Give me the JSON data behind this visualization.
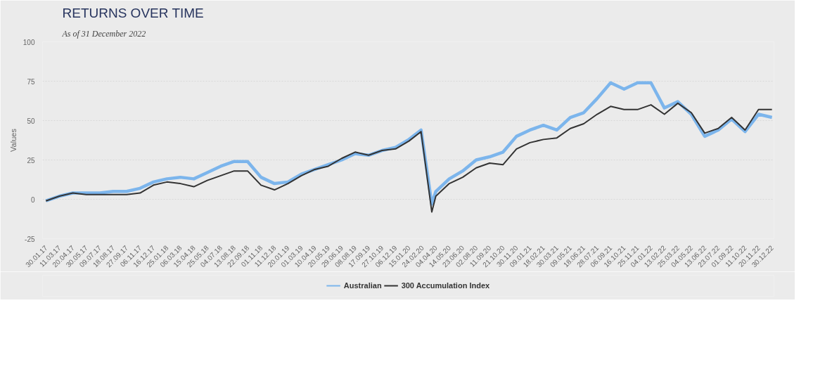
{
  "chart_data": {
    "type": "line",
    "title": "RETURNS OVER TIME",
    "subtitle": "As of 31 December 2022",
    "ylabel": "Values",
    "x": [
      "2017-01-30",
      "2017-03-11",
      "2017-04-20",
      "2017-05-30",
      "2017-07-09",
      "2017-08-18",
      "2017-09-27",
      "2017-11-06",
      "2017-12-16",
      "2018-01-25",
      "2018-03-06",
      "2018-04-15",
      "2018-05-25",
      "2018-07-04",
      "2018-08-13",
      "2018-09-22",
      "2018-11-01",
      "2018-12-11",
      "2019-01-20",
      "2019-03-01",
      "2019-04-10",
      "2019-05-20",
      "2019-06-29",
      "2019-08-08",
      "2019-09-17",
      "2019-10-27",
      "2019-12-06",
      "2020-01-15",
      "2020-02-20",
      "2020-03-23",
      "2020-04-04",
      "2020-05-14",
      "2020-06-23",
      "2020-08-02",
      "2020-09-11",
      "2020-10-21",
      "2020-11-30",
      "2021-01-09",
      "2021-02-18",
      "2021-03-30",
      "2021-05-09",
      "2021-06-18",
      "2021-07-28",
      "2021-09-06",
      "2021-10-16",
      "2021-11-25",
      "2022-01-04",
      "2022-02-13",
      "2022-03-25",
      "2022-05-04",
      "2022-06-13",
      "2022-07-23",
      "2022-09-01",
      "2022-10-11",
      "2022-11-20",
      "2022-12-30"
    ],
    "series": [
      {
        "name": "Australian",
        "color": "#7cb5ec",
        "values": [
          -1,
          2,
          4,
          4,
          4,
          5,
          5,
          7,
          11,
          13,
          14,
          13,
          17,
          21,
          24,
          24,
          14,
          10,
          11,
          16,
          19,
          22,
          25,
          29,
          28,
          31,
          33,
          38,
          44,
          -3,
          5,
          13,
          18,
          25,
          27,
          30,
          40,
          44,
          47,
          44,
          52,
          55,
          64,
          74,
          70,
          74,
          74,
          58,
          62,
          54,
          40,
          44,
          51,
          43,
          54,
          52
        ]
      },
      {
        "name": "300 Accumulation Index",
        "color": "#333333",
        "values": [
          -1,
          2,
          4,
          3,
          3,
          3,
          3,
          4,
          9,
          11,
          10,
          8,
          12,
          15,
          18,
          18,
          9,
          6,
          10,
          15,
          19,
          21,
          26,
          30,
          28,
          31,
          32,
          37,
          43,
          -8,
          2,
          10,
          14,
          20,
          23,
          22,
          32,
          36,
          38,
          39,
          45,
          48,
          54,
          59,
          57,
          57,
          60,
          54,
          61,
          55,
          42,
          45,
          52,
          44,
          57,
          57
        ]
      }
    ],
    "xlim": [
      "2017-01-20",
      "2023-01-05"
    ],
    "xticks": [
      {
        "value": "2017-01-30",
        "label": "30.01.17"
      },
      {
        "value": "2017-03-11",
        "label": "11.03.17"
      },
      {
        "value": "2017-04-20",
        "label": "20.04.17"
      },
      {
        "value": "2017-05-30",
        "label": "30.05.17"
      },
      {
        "value": "2017-07-09",
        "label": "09.07.17"
      },
      {
        "value": "2017-08-18",
        "label": "18.08.17"
      },
      {
        "value": "2017-09-27",
        "label": "27.09.17"
      },
      {
        "value": "2017-11-06",
        "label": "06.11.17"
      },
      {
        "value": "2017-12-16",
        "label": "16.12.17"
      },
      {
        "value": "2018-01-25",
        "label": "25.01.18"
      },
      {
        "value": "2018-03-06",
        "label": "06.03.18"
      },
      {
        "value": "2018-04-15",
        "label": "15.04.18"
      },
      {
        "value": "2018-05-25",
        "label": "25.05.18"
      },
      {
        "value": "2018-07-04",
        "label": "04.07.18"
      },
      {
        "value": "2018-08-13",
        "label": "13.08.18"
      },
      {
        "value": "2018-09-22",
        "label": "22.09.18"
      },
      {
        "value": "2018-11-01",
        "label": "01.11.18"
      },
      {
        "value": "2018-12-11",
        "label": "11.12.18"
      },
      {
        "value": "2019-01-20",
        "label": "20.01.19"
      },
      {
        "value": "2019-03-01",
        "label": "01.03.19"
      },
      {
        "value": "2019-04-10",
        "label": "10.04.19"
      },
      {
        "value": "2019-05-20",
        "label": "20.05.19"
      },
      {
        "value": "2019-06-29",
        "label": "29.06.19"
      },
      {
        "value": "2019-08-08",
        "label": "08.08.19"
      },
      {
        "value": "2019-09-17",
        "label": "17.09.19"
      },
      {
        "value": "2019-10-27",
        "label": "27.10.19"
      },
      {
        "value": "2019-12-06",
        "label": "06.12.19"
      },
      {
        "value": "2020-01-15",
        "label": "15.01.20"
      },
      {
        "value": "2020-02-24",
        "label": "24.02.20"
      },
      {
        "value": "2020-04-04",
        "label": "04.04.20"
      },
      {
        "value": "2020-05-14",
        "label": "14.05.20"
      },
      {
        "value": "2020-06-23",
        "label": "23.06.20"
      },
      {
        "value": "2020-08-02",
        "label": "02.08.20"
      },
      {
        "value": "2020-09-11",
        "label": "11.09.20"
      },
      {
        "value": "2020-10-21",
        "label": "21.10.20"
      },
      {
        "value": "2020-11-30",
        "label": "30.11.20"
      },
      {
        "value": "2021-01-09",
        "label": "09.01.21"
      },
      {
        "value": "2021-02-18",
        "label": "18.02.21"
      },
      {
        "value": "2021-03-30",
        "label": "30.03.21"
      },
      {
        "value": "2021-05-09",
        "label": "09.05.21"
      },
      {
        "value": "2021-06-18",
        "label": "18.06.21"
      },
      {
        "value": "2021-07-28",
        "label": "28.07.21"
      },
      {
        "value": "2021-09-06",
        "label": "06.09.21"
      },
      {
        "value": "2021-10-16",
        "label": "16.10.21"
      },
      {
        "value": "2021-11-25",
        "label": "25.11.21"
      },
      {
        "value": "2022-01-04",
        "label": "04.01.22"
      },
      {
        "value": "2022-02-13",
        "label": "13.02.22"
      },
      {
        "value": "2022-03-25",
        "label": "25.03.22"
      },
      {
        "value": "2022-05-04",
        "label": "04.05.22"
      },
      {
        "value": "2022-06-13",
        "label": "13.06.22"
      },
      {
        "value": "2022-07-23",
        "label": "23.07.22"
      },
      {
        "value": "2022-09-01",
        "label": "01.09.22"
      },
      {
        "value": "2022-10-11",
        "label": "11.10.22"
      },
      {
        "value": "2022-11-20",
        "label": "20.11.22"
      },
      {
        "value": "2022-12-30",
        "label": "30.12.22"
      }
    ],
    "ylim": [
      -25,
      100
    ],
    "yticks": [
      -25,
      0,
      25,
      50,
      75,
      100
    ],
    "grid": "y",
    "legend": "bottom",
    "line_style": "solid"
  }
}
